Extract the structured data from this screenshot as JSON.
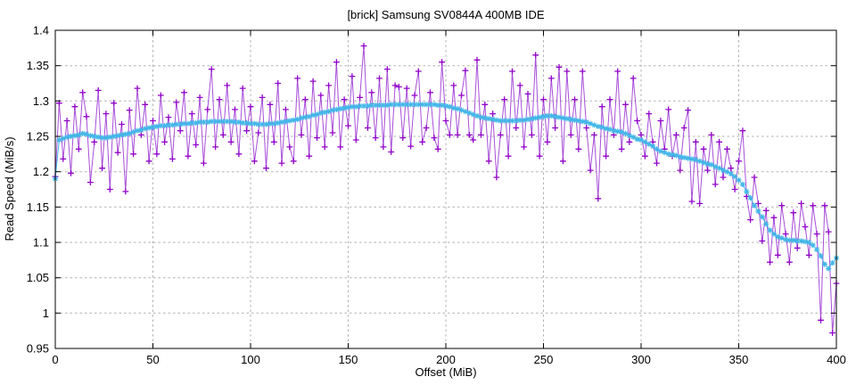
{
  "chart_data": {
    "type": "line",
    "title": "[brick] Samsung SV0844A 400MB IDE",
    "xlabel": "Offset (MiB)",
    "ylabel": "Read Speed (MiB/s)",
    "xlim": [
      0,
      400
    ],
    "ylim": [
      0.95,
      1.4
    ],
    "grid": true,
    "legend": "none",
    "x_tick_values": [
      0,
      50,
      100,
      150,
      200,
      250,
      300,
      350,
      400
    ],
    "x_tick_labels": [
      "0",
      "50",
      "100",
      "150",
      "200",
      "250",
      "300",
      "350",
      "400"
    ],
    "y_tick_values": [
      0.95,
      1.0,
      1.05,
      1.1,
      1.15,
      1.2,
      1.25,
      1.3,
      1.35,
      1.4
    ],
    "y_tick_labels": [
      "0.95",
      "1",
      "1.05",
      "1.1",
      "1.15",
      "1.2",
      "1.25",
      "1.3",
      "1.35",
      "1.4"
    ],
    "x_start": 0,
    "x_step": 2,
    "series": [
      {
        "name": "raw",
        "marker": "plus",
        "line_color": "#a84fd8",
        "marker_color": "#9102c8",
        "values": [
          1.193,
          1.297,
          1.218,
          1.272,
          1.198,
          1.292,
          1.232,
          1.312,
          1.278,
          1.185,
          1.242,
          1.315,
          1.205,
          1.282,
          1.175,
          1.297,
          1.227,
          1.267,
          1.172,
          1.287,
          1.225,
          1.318,
          1.252,
          1.295,
          1.215,
          1.272,
          1.225,
          1.308,
          1.242,
          1.277,
          1.218,
          1.298,
          1.258,
          1.312,
          1.222,
          1.282,
          1.238,
          1.305,
          1.212,
          1.288,
          1.345,
          1.235,
          1.302,
          1.252,
          1.322,
          1.242,
          1.288,
          1.225,
          1.318,
          1.258,
          1.292,
          1.215,
          1.255,
          1.305,
          1.205,
          1.295,
          1.242,
          1.325,
          1.212,
          1.288,
          1.235,
          1.215,
          1.332,
          1.252,
          1.302,
          1.222,
          1.328,
          1.248,
          1.308,
          1.235,
          1.322,
          1.255,
          1.355,
          1.235,
          1.302,
          1.265,
          1.335,
          1.245,
          1.305,
          1.378,
          1.262,
          1.312,
          1.248,
          1.332,
          1.235,
          1.345,
          1.228,
          1.322,
          1.32,
          1.248,
          1.318,
          1.236,
          1.308,
          1.342,
          1.242,
          1.262,
          1.312,
          1.248,
          1.232,
          1.355,
          1.272,
          1.252,
          1.322,
          1.252,
          1.308,
          1.343,
          1.252,
          1.245,
          1.358,
          1.252,
          1.295,
          1.215,
          1.282,
          1.192,
          1.252,
          1.302,
          1.222,
          1.342,
          1.262,
          1.322,
          1.235,
          1.31,
          1.252,
          1.365,
          1.222,
          1.302,
          1.242,
          1.332,
          1.262,
          1.348,
          1.215,
          1.342,
          1.252,
          1.302,
          1.232,
          1.342,
          1.262,
          1.202,
          1.252,
          1.162,
          1.292,
          1.222,
          1.302,
          1.252,
          1.342,
          1.232,
          1.295,
          1.242,
          1.332,
          1.272,
          1.252,
          1.222,
          1.282,
          1.242,
          1.212,
          1.272,
          1.232,
          1.288,
          1.222,
          1.252,
          1.202,
          1.262,
          1.287,
          1.158,
          1.242,
          1.155,
          1.232,
          1.202,
          1.252,
          1.182,
          1.242,
          1.192,
          1.232,
          1.205,
          1.175,
          1.215,
          1.258,
          1.165,
          1.132,
          1.192,
          1.155,
          1.102,
          1.145,
          1.072,
          1.135,
          1.082,
          1.152,
          1.112,
          1.072,
          1.142,
          1.092,
          1.155,
          1.122,
          1.082,
          1.152,
          1.112,
          0.99,
          1.152,
          1.115,
          0.972,
          1.042
        ]
      },
      {
        "name": "smoothed",
        "marker": "asterisk",
        "line_color": "#41b6e8",
        "marker_color": "#41b6e8",
        "values": [
          1.19,
          1.245,
          1.247,
          1.249,
          1.25,
          1.251,
          1.252,
          1.254,
          1.253,
          1.251,
          1.25,
          1.249,
          1.248,
          1.248,
          1.249,
          1.25,
          1.251,
          1.252,
          1.253,
          1.254,
          1.256,
          1.258,
          1.259,
          1.261,
          1.262,
          1.263,
          1.264,
          1.265,
          1.265,
          1.266,
          1.266,
          1.267,
          1.267,
          1.268,
          1.268,
          1.269,
          1.269,
          1.27,
          1.27,
          1.27,
          1.271,
          1.271,
          1.271,
          1.271,
          1.271,
          1.271,
          1.27,
          1.27,
          1.269,
          1.269,
          1.268,
          1.268,
          1.267,
          1.267,
          1.267,
          1.268,
          1.268,
          1.269,
          1.27,
          1.271,
          1.272,
          1.273,
          1.274,
          1.276,
          1.277,
          1.278,
          1.28,
          1.281,
          1.283,
          1.284,
          1.285,
          1.287,
          1.288,
          1.289,
          1.29,
          1.291,
          1.292,
          1.292,
          1.293,
          1.293,
          1.293,
          1.294,
          1.294,
          1.294,
          1.294,
          1.294,
          1.295,
          1.295,
          1.295,
          1.295,
          1.295,
          1.295,
          1.295,
          1.295,
          1.295,
          1.295,
          1.295,
          1.295,
          1.294,
          1.294,
          1.293,
          1.292,
          1.29,
          1.289,
          1.287,
          1.285,
          1.283,
          1.281,
          1.279,
          1.277,
          1.276,
          1.275,
          1.274,
          1.273,
          1.272,
          1.272,
          1.272,
          1.272,
          1.272,
          1.273,
          1.273,
          1.274,
          1.275,
          1.276,
          1.277,
          1.278,
          1.279,
          1.279,
          1.278,
          1.277,
          1.276,
          1.275,
          1.274,
          1.273,
          1.272,
          1.271,
          1.27,
          1.268,
          1.266,
          1.264,
          1.263,
          1.261,
          1.26,
          1.258,
          1.257,
          1.256,
          1.254,
          1.251,
          1.249,
          1.246,
          1.245,
          1.242,
          1.239,
          1.236,
          1.232,
          1.229,
          1.227,
          1.225,
          1.224,
          1.223,
          1.221,
          1.22,
          1.219,
          1.218,
          1.217,
          1.215,
          1.213,
          1.211,
          1.21,
          1.207,
          1.205,
          1.202,
          1.2,
          1.197,
          1.193,
          1.188,
          1.182,
          1.172,
          1.163,
          1.152,
          1.144,
          1.136,
          1.126,
          1.117,
          1.112,
          1.108,
          1.106,
          1.104,
          1.103,
          1.103,
          1.102,
          1.102,
          1.101,
          1.1,
          1.096,
          1.09,
          1.081,
          1.069,
          1.063,
          1.071,
          1.078
        ]
      }
    ],
    "style": {
      "grid_color": "#b0b0b0",
      "border_color": "#000000",
      "text_color": "#000000",
      "background": "#ffffff"
    }
  }
}
